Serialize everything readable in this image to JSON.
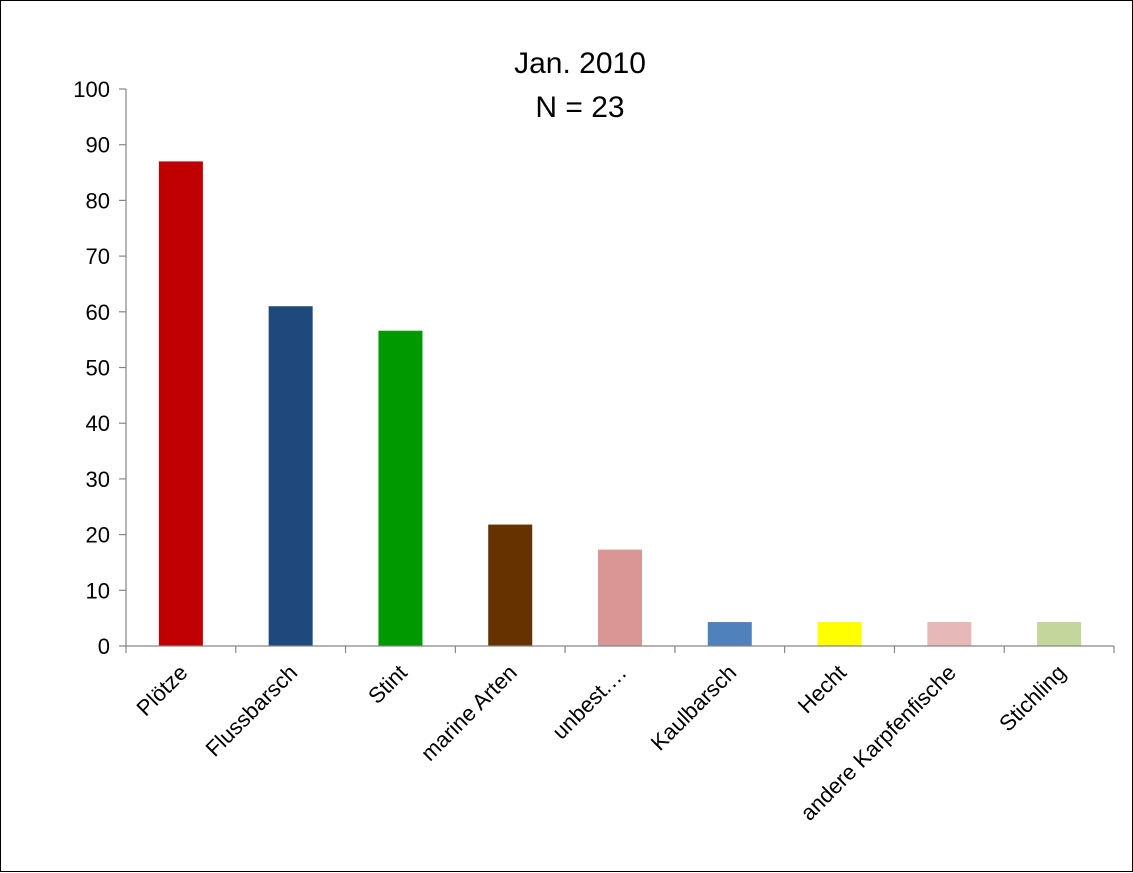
{
  "chart_data": {
    "type": "bar",
    "title_line1": "Jan. 2010",
    "title_line2": "N = 23",
    "xlabel": "",
    "ylabel": "",
    "ylim": [
      0,
      100
    ],
    "ytick_step": 10,
    "yticks": [
      "0",
      "10",
      "20",
      "30",
      "40",
      "50",
      "60",
      "70",
      "80",
      "90",
      "100"
    ],
    "grid": false,
    "legend": "none",
    "categories": [
      "Plötze",
      "Flussbarsch",
      "Stint",
      "marine Arten",
      "unbest.…",
      "Kaulbarsch",
      "Hecht",
      "andere Karpfenfische",
      "Stichling"
    ],
    "values": [
      87,
      61,
      56.6,
      21.8,
      17.3,
      4.3,
      4.3,
      4.3,
      4.3
    ],
    "colors": [
      "#C00000",
      "#1F497D",
      "#009900",
      "#663300",
      "#D99694",
      "#4F81BD",
      "#FFFF00",
      "#E6B9B8",
      "#C3D69B"
    ]
  }
}
